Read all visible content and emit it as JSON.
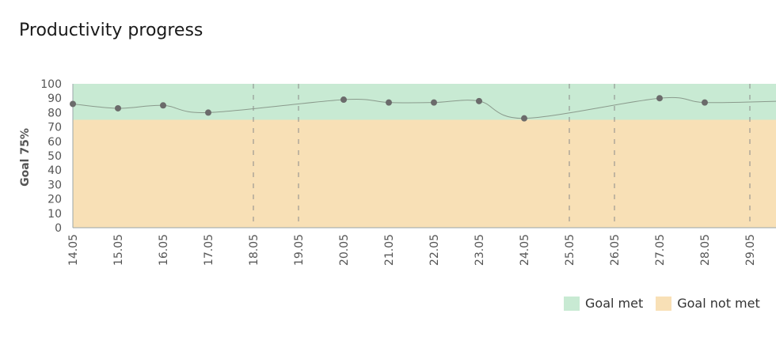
{
  "chart_data": {
    "type": "line",
    "title": "Productivity progress",
    "ylabel": "Goal 75%",
    "xlabel": "",
    "goal": 75,
    "ylim": [
      0,
      100
    ],
    "yticks": [
      0,
      10,
      20,
      30,
      40,
      50,
      60,
      70,
      80,
      90,
      100
    ],
    "categories": [
      "14.05",
      "15.05",
      "16.05",
      "17.05",
      "18.05",
      "19.05",
      "20.05",
      "21.05",
      "22.05",
      "23.05",
      "24.05",
      "25.05",
      "26.05",
      "27.05",
      "28.05",
      "29.05"
    ],
    "points": [
      {
        "x": "14.05",
        "y": 86
      },
      {
        "x": "15.05",
        "y": 83
      },
      {
        "x": "16.05",
        "y": 85
      },
      {
        "x": "17.05",
        "y": 80
      },
      {
        "x": "20.05",
        "y": 89
      },
      {
        "x": "21.05",
        "y": 87
      },
      {
        "x": "22.05",
        "y": 87
      },
      {
        "x": "23.05",
        "y": 88
      },
      {
        "x": "24.05",
        "y": 76
      },
      {
        "x": "27.05",
        "y": 90
      },
      {
        "x": "28.05",
        "y": 87
      }
    ],
    "dashed_dates": [
      "18.05",
      "19.05",
      "25.05",
      "26.05",
      "29.05"
    ],
    "grid": false,
    "legend": {
      "placement": "bottom-right",
      "items": [
        {
          "label": "Goal met",
          "color": "#c8ead3"
        },
        {
          "label": "Goal not met",
          "color": "#f8e0b6"
        }
      ]
    },
    "colors": {
      "line": "#8a9a8c",
      "point": "#6b6b6b",
      "axis": "#9aa6a8",
      "dash": "#8a8a8a"
    }
  }
}
